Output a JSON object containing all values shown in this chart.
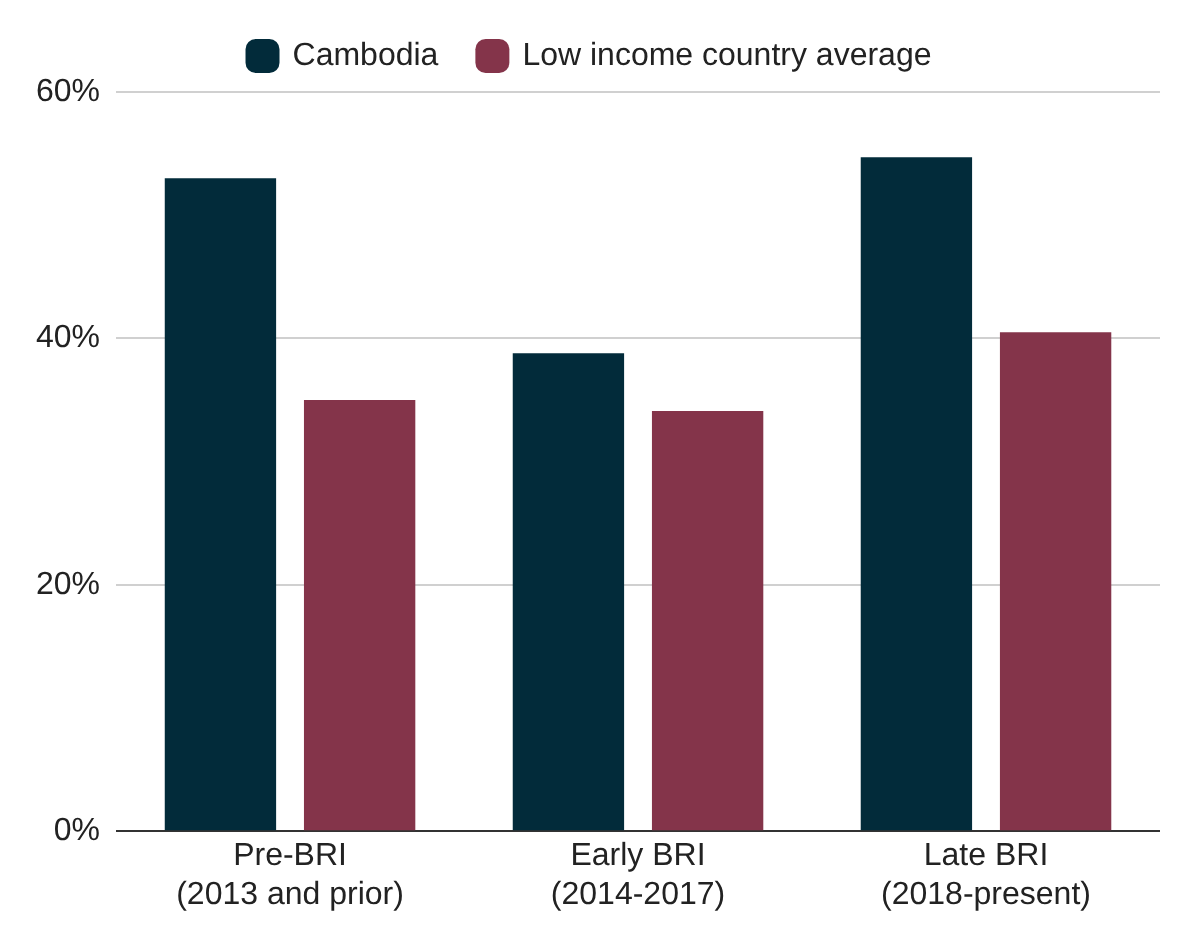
{
  "chart_data": {
    "type": "bar",
    "categories": [
      "Pre-BRI\n(2013 and prior)",
      "Early BRI\n(2014-2017)",
      "Late BRI\n(2018-present)"
    ],
    "series": [
      {
        "name": "Cambodia",
        "color": "#022b3a",
        "values": [
          53,
          38.8,
          54.7
        ]
      },
      {
        "name": "Low income country average",
        "color": "#84344a",
        "values": [
          35,
          34.1,
          40.5
        ]
      }
    ],
    "ylim": [
      0,
      60
    ],
    "yticks": [
      {
        "value": 0,
        "label": "0%"
      },
      {
        "value": 20,
        "label": "20%"
      },
      {
        "value": 40,
        "label": "40%"
      },
      {
        "value": 60,
        "label": "60%"
      }
    ],
    "grid": "y",
    "legend": "top"
  }
}
